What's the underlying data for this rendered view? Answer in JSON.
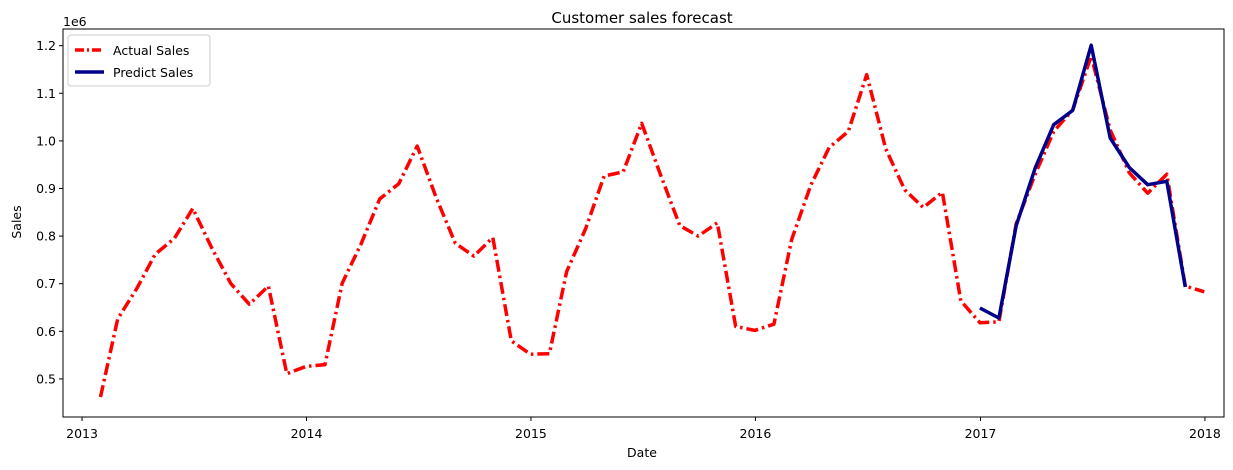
{
  "chart_data": {
    "type": "line",
    "title": "Customer sales forecast",
    "xlabel": "Date",
    "ylabel": "Sales",
    "y_offset_label": "1e6",
    "xlim": [
      "2012-12-01",
      "2018-02-01"
    ],
    "ylim": [
      0.42,
      1.235
    ],
    "x_ticks": [
      "2013",
      "2014",
      "2015",
      "2016",
      "2017",
      "2018"
    ],
    "y_ticks": [
      "0.5",
      "0.6",
      "0.7",
      "0.8",
      "0.9",
      "1.0",
      "1.1",
      "1.2"
    ],
    "grid": false,
    "legend_position": "top-left",
    "series": [
      {
        "name": "Actual Sales",
        "color": "#ff0000",
        "line_style": "dashdot",
        "x": [
          "2013-01-31",
          "2013-02-28",
          "2013-03-31",
          "2013-04-30",
          "2013-05-31",
          "2013-06-30",
          "2013-07-31",
          "2013-08-31",
          "2013-09-30",
          "2013-10-31",
          "2013-11-30",
          "2013-12-31",
          "2014-01-31",
          "2014-02-28",
          "2014-03-31",
          "2014-04-30",
          "2014-05-31",
          "2014-06-30",
          "2014-07-31",
          "2014-08-31",
          "2014-09-30",
          "2014-10-31",
          "2014-11-30",
          "2014-12-31",
          "2015-01-31",
          "2015-02-28",
          "2015-03-31",
          "2015-04-30",
          "2015-05-31",
          "2015-06-30",
          "2015-07-31",
          "2015-08-31",
          "2015-09-30",
          "2015-10-31",
          "2015-11-30",
          "2015-12-31",
          "2016-01-31",
          "2016-02-29",
          "2016-03-31",
          "2016-04-30",
          "2016-05-31",
          "2016-06-30",
          "2016-07-31",
          "2016-08-31",
          "2016-09-30",
          "2016-10-31",
          "2016-11-30",
          "2016-12-31",
          "2017-01-31",
          "2017-02-28",
          "2017-03-31",
          "2017-04-30",
          "2017-05-31",
          "2017-06-30",
          "2017-07-31",
          "2017-08-31",
          "2017-09-30",
          "2017-10-31",
          "2017-11-30",
          "2017-12-31"
        ],
        "values": [
          0.462,
          0.626,
          0.69,
          0.762,
          0.795,
          0.858,
          0.775,
          0.7,
          0.657,
          0.695,
          0.511,
          0.526,
          0.53,
          0.701,
          0.784,
          0.878,
          0.91,
          0.989,
          0.88,
          0.785,
          0.758,
          0.797,
          0.58,
          0.552,
          0.553,
          0.725,
          0.816,
          0.926,
          0.935,
          1.037,
          0.928,
          0.822,
          0.8,
          0.828,
          0.61,
          0.602,
          0.615,
          0.793,
          0.907,
          0.986,
          1.02,
          1.139,
          0.983,
          0.897,
          0.86,
          0.892,
          0.664,
          0.618,
          0.62,
          0.826,
          0.93,
          1.02,
          1.065,
          1.178,
          1.023,
          0.933,
          0.89,
          0.93,
          0.695,
          0.683
        ]
      },
      {
        "name": "Predict Sales",
        "color": "#00008b",
        "line_style": "solid",
        "x": [
          "2016-12-31",
          "2017-01-31",
          "2017-02-28",
          "2017-03-31",
          "2017-04-30",
          "2017-05-31",
          "2017-06-30",
          "2017-07-31",
          "2017-08-31",
          "2017-09-30",
          "2017-10-31",
          "2017-11-30"
        ],
        "values": [
          0.649,
          0.628,
          0.822,
          0.943,
          1.034,
          1.064,
          1.201,
          1.006,
          0.944,
          0.908,
          0.915,
          0.693
        ]
      }
    ]
  }
}
